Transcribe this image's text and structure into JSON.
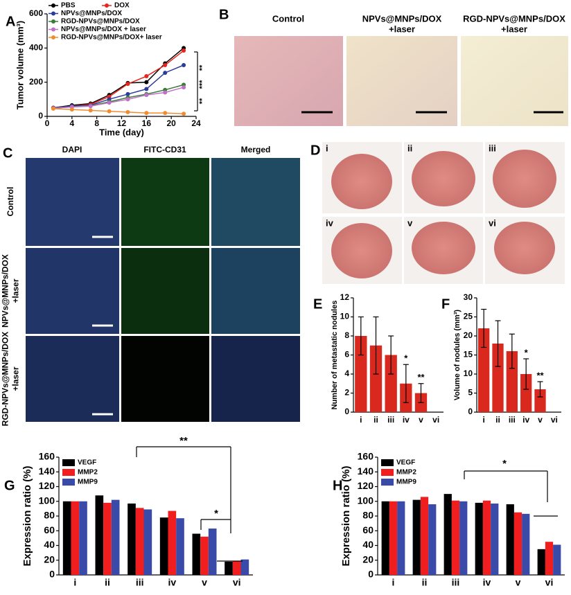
{
  "panels": {
    "letters": [
      "A",
      "B",
      "C",
      "D",
      "E",
      "F",
      "G",
      "H"
    ],
    "B": {
      "labels": [
        [
          "Control"
        ],
        [
          "NPVs@MNPs/DOX",
          "+laser"
        ],
        [
          "RGD-NPVs@MNPs/DOX",
          "+laser"
        ]
      ]
    },
    "C": {
      "columns": [
        "DAPI",
        "FITC-CD31",
        "Merged"
      ],
      "rows": [
        [
          "Control"
        ],
        [
          "NPVs@MNPs/DOX",
          "+laser"
        ],
        [
          "RGD-NPVs@MNPs/DOX",
          "+laser"
        ]
      ]
    },
    "D": {
      "labels": [
        "i",
        "ii",
        "iii",
        "iv",
        "v",
        "vi"
      ]
    }
  },
  "chart_data": [
    {
      "type": "line",
      "x_label": "Time (day)",
      "y_label": "Tumor volume (mm³)",
      "x": [
        1,
        4,
        7,
        10,
        13,
        16,
        19,
        22
      ],
      "xlim": [
        0,
        24
      ],
      "xticks": [
        0,
        4,
        8,
        12,
        16,
        20,
        24
      ],
      "ylim": [
        0,
        600
      ],
      "yticks": [
        0,
        200,
        400,
        600
      ],
      "series": [
        {
          "name": "PBS",
          "color": "#000000",
          "values": [
            50,
            65,
            75,
            125,
            195,
            200,
            310,
            400
          ]
        },
        {
          "name": "DOX",
          "color": "#e8241c",
          "values": [
            50,
            60,
            70,
            115,
            190,
            235,
            300,
            385
          ]
        },
        {
          "name": "NPVs@MNPs/DOX",
          "color": "#2a3d9a",
          "values": [
            50,
            60,
            65,
            100,
            130,
            160,
            255,
            300
          ]
        },
        {
          "name": "RGD-NPVs@MNPs/DOX",
          "color": "#3a7d36",
          "values": [
            48,
            55,
            62,
            85,
            110,
            130,
            155,
            185
          ]
        },
        {
          "name": "NPVs@MNPs/DOX + laser",
          "color": "#c070c8",
          "values": [
            47,
            55,
            60,
            80,
            100,
            125,
            140,
            170
          ]
        },
        {
          "name": "RGD-NPVs@MNPs/DOX+ laser",
          "color": "#f08c30",
          "values": [
            45,
            40,
            35,
            30,
            25,
            20,
            20,
            15
          ]
        }
      ],
      "annotations": [
        "**",
        "***",
        "**"
      ]
    },
    {
      "type": "bar",
      "y_label": "Number of metastatic nodules",
      "color": "#d9281e",
      "categories": [
        "i",
        "ii",
        "iii",
        "iv",
        "v",
        "vi"
      ],
      "values": [
        8,
        7,
        6,
        3,
        2,
        0
      ],
      "errors": [
        2,
        3,
        2,
        2,
        1,
        null
      ],
      "ylim": [
        0,
        12
      ],
      "yticks": [
        0,
        2,
        4,
        6,
        8,
        10,
        12
      ],
      "annotations": [
        "*",
        "**"
      ]
    },
    {
      "type": "bar",
      "y_label": "Volume of nodules (mm³)",
      "color": "#d9281e",
      "categories": [
        "i",
        "ii",
        "iii",
        "iv",
        "v",
        "vi"
      ],
      "values": [
        22,
        18,
        16,
        10,
        6,
        0
      ],
      "errors": [
        5,
        6,
        4.5,
        4,
        2,
        null
      ],
      "ylim": [
        0,
        30
      ],
      "yticks": [
        0,
        5,
        10,
        15,
        20,
        25,
        30
      ],
      "annotations": [
        "*",
        "**"
      ]
    },
    {
      "type": "bar",
      "y_label": "Expression ratio (%)",
      "categories": [
        "i",
        "ii",
        "iii",
        "iv",
        "v",
        "vi"
      ],
      "series": [
        {
          "name": "VEGF",
          "color": "#000000",
          "values": [
            100,
            108,
            97,
            78,
            56,
            18
          ]
        },
        {
          "name": "MMP2",
          "color": "#f01e1e",
          "values": [
            100,
            98,
            91,
            87,
            52,
            19
          ]
        },
        {
          "name": "MMP9",
          "color": "#3a4aa8",
          "values": [
            100,
            102,
            89,
            77,
            63,
            21
          ]
        }
      ],
      "ylim": [
        0,
        160
      ],
      "yticks": [
        0,
        20,
        40,
        60,
        80,
        100,
        120,
        140,
        160
      ],
      "annotations": [
        "**",
        "*"
      ]
    },
    {
      "type": "bar",
      "y_label": "Expression ratio (%)",
      "categories": [
        "i",
        "ii",
        "iii",
        "iv",
        "v",
        "vi"
      ],
      "series": [
        {
          "name": "VEGF",
          "color": "#000000",
          "values": [
            100,
            102,
            110,
            98,
            96,
            35
          ]
        },
        {
          "name": "MMP2",
          "color": "#f01e1e",
          "values": [
            100,
            106,
            101,
            101,
            85,
            45
          ]
        },
        {
          "name": "MMP9",
          "color": "#3a4aa8",
          "values": [
            100,
            96,
            100,
            97,
            83,
            41
          ]
        }
      ],
      "ylim": [
        0,
        160
      ],
      "yticks": [
        0,
        20,
        40,
        60,
        80,
        100,
        120,
        140,
        160
      ],
      "annotations": [
        "*"
      ]
    }
  ]
}
